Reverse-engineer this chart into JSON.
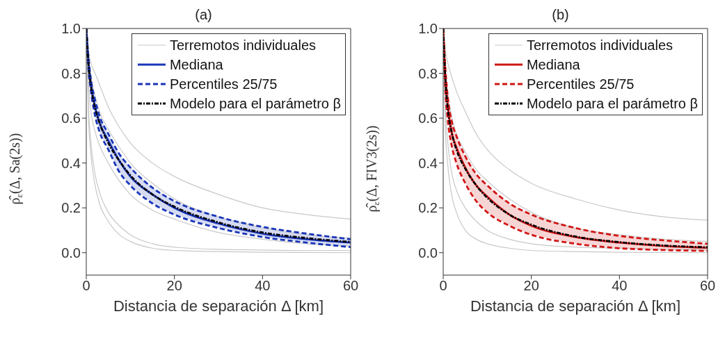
{
  "chart_data": [
    {
      "type": "line",
      "title": "(a)",
      "xlabel": "Distancia de separación Δ [km]",
      "ylabel": "ρ̂$_{ε}$(Δ, Sa(2s))",
      "x": [
        0,
        0.5,
        1,
        2,
        3,
        5,
        7.5,
        10,
        15,
        20,
        30,
        40,
        50,
        60
      ],
      "xlim": [
        0,
        60
      ],
      "xticks": [
        0,
        20,
        40,
        60
      ],
      "ylim": [
        -0.1,
        1.0
      ],
      "yticks": [
        {
          "value": 0,
          "label": "0.0"
        },
        {
          "value": 0.2,
          "label": "0.2"
        },
        {
          "value": 0.4,
          "label": "0.4"
        },
        {
          "value": 0.6,
          "label": "0.6"
        },
        {
          "value": 0.8,
          "label": "0.8"
        },
        {
          "value": 1,
          "label": "1.0"
        }
      ],
      "grid": false,
      "legend": "top right",
      "marker": "none",
      "series": [
        {
          "name": "Terremotos individuales",
          "color": "#c8c8c8",
          "line_style": "solid",
          "values": [
            1,
            0.9,
            0.85,
            0.8,
            0.75,
            0.65,
            0.56,
            0.49,
            0.4,
            0.34,
            0.26,
            0.2,
            0.17,
            0.15
          ]
        },
        {
          "color": "#c8c8c8",
          "line_style": "solid",
          "values": [
            1,
            0.6,
            0.45,
            0.3,
            0.22,
            0.14,
            0.08,
            0.05,
            0.02,
            0.01,
            0.005,
            0.002,
            0.001,
            0
          ]
        },
        {
          "color": "#c8c8c8",
          "line_style": "solid",
          "values": [
            1,
            0.65,
            0.5,
            0.35,
            0.27,
            0.18,
            0.12,
            0.08,
            0.04,
            0.025,
            0.015,
            0.012,
            0.01,
            0.01
          ]
        },
        {
          "color": "#c8c8c8",
          "line_style": "solid",
          "values": [
            1,
            0.75,
            0.64,
            0.54,
            0.48,
            0.4,
            0.32,
            0.26,
            0.19,
            0.15,
            0.09,
            0.06,
            0.04,
            0.03
          ]
        },
        {
          "color": "#c8c8c8",
          "line_style": "solid",
          "values": [
            1,
            0.86,
            0.79,
            0.7,
            0.63,
            0.55,
            0.47,
            0.4,
            0.31,
            0.24,
            0.16,
            0.11,
            0.08,
            0.065
          ]
        },
        {
          "name": "Mediana",
          "color": "#1a35b8",
          "line_style": "solid",
          "values": [
            1,
            0.85,
            0.76,
            0.65,
            0.58,
            0.5,
            0.41,
            0.34,
            0.26,
            0.2,
            0.13,
            0.085,
            0.06,
            0.045
          ],
          "lower": [
            1,
            0.82,
            0.73,
            0.61,
            0.54,
            0.46,
            0.36,
            0.3,
            0.22,
            0.17,
            0.11,
            0.07,
            0.045,
            0.025
          ],
          "upper": [
            1,
            0.87,
            0.78,
            0.68,
            0.61,
            0.53,
            0.44,
            0.38,
            0.29,
            0.23,
            0.16,
            0.115,
            0.085,
            0.06
          ]
        },
        {
          "name": "Percentiles 25/75",
          "color": "#1a35b8",
          "line_style": "dashed",
          "values": [
            1,
            0.87,
            0.78,
            0.68,
            0.61,
            0.53,
            0.44,
            0.38,
            0.29,
            0.23,
            0.16,
            0.115,
            0.085,
            0.06
          ]
        },
        {
          "color": "#1a35b8",
          "line_style": "dashed",
          "values": [
            1,
            0.82,
            0.73,
            0.61,
            0.54,
            0.46,
            0.36,
            0.3,
            0.22,
            0.17,
            0.11,
            0.07,
            0.045,
            0.025
          ]
        },
        {
          "name": "Modelo para el parámetro β",
          "color": "#000000",
          "line_style": "dashdot",
          "values": [
            1,
            0.84,
            0.75,
            0.645,
            0.58,
            0.49,
            0.41,
            0.345,
            0.26,
            0.205,
            0.135,
            0.09,
            0.065,
            0.048
          ]
        }
      ]
    },
    {
      "type": "line",
      "title": "(b)",
      "xlabel": "Distancia de separación Δ [km]",
      "ylabel": "ρ̂$_{ε}$(Δ, FIV3(2s))",
      "x": [
        0,
        0.5,
        1,
        2,
        3,
        5,
        7.5,
        10,
        15,
        20,
        30,
        40,
        50,
        60
      ],
      "xlim": [
        0,
        60
      ],
      "xticks": [
        0,
        20,
        40,
        60
      ],
      "ylim": [
        -0.1,
        1.0
      ],
      "yticks": [
        {
          "value": 0,
          "label": "0.0"
        },
        {
          "value": 0.2,
          "label": "0.2"
        },
        {
          "value": 0.4,
          "label": "0.4"
        },
        {
          "value": 0.6,
          "label": "0.6"
        },
        {
          "value": 0.8,
          "label": "0.8"
        },
        {
          "value": 1,
          "label": "1.0"
        }
      ],
      "grid": false,
      "legend": "top right",
      "marker": "none",
      "series": [
        {
          "name": "Terremotos individuales",
          "color": "#c8c8c8",
          "line_style": "solid",
          "values": [
            1,
            0.9,
            0.85,
            0.78,
            0.72,
            0.63,
            0.53,
            0.46,
            0.37,
            0.31,
            0.24,
            0.19,
            0.16,
            0.145
          ]
        },
        {
          "color": "#c8c8c8",
          "line_style": "solid",
          "values": [
            1,
            0.55,
            0.4,
            0.25,
            0.18,
            0.1,
            0.06,
            0.04,
            0.02,
            0.01,
            0.005,
            0.002,
            0.001,
            0
          ]
        },
        {
          "color": "#c8c8c8",
          "line_style": "solid",
          "values": [
            1,
            0.65,
            0.5,
            0.35,
            0.28,
            0.2,
            0.14,
            0.1,
            0.06,
            0.04,
            0.025,
            0.02,
            0.015,
            0.015
          ]
        },
        {
          "color": "#c8c8c8",
          "line_style": "solid",
          "values": [
            1,
            0.8,
            0.72,
            0.6,
            0.53,
            0.45,
            0.37,
            0.32,
            0.24,
            0.18,
            0.11,
            0.08,
            0.06,
            0.05
          ]
        },
        {
          "name": "Mediana",
          "color": "#d01515",
          "line_style": "solid",
          "values": [
            1,
            0.78,
            0.66,
            0.53,
            0.47,
            0.38,
            0.3,
            0.25,
            0.17,
            0.12,
            0.07,
            0.045,
            0.03,
            0.022
          ],
          "lower": [
            1,
            0.72,
            0.6,
            0.47,
            0.4,
            0.31,
            0.23,
            0.18,
            0.12,
            0.08,
            0.04,
            0.02,
            0.012,
            0.008
          ],
          "upper": [
            1,
            0.82,
            0.7,
            0.58,
            0.52,
            0.43,
            0.35,
            0.3,
            0.22,
            0.17,
            0.11,
            0.075,
            0.055,
            0.04
          ]
        },
        {
          "name": "Percentiles 25/75",
          "color": "#d01515",
          "line_style": "dashed",
          "values": [
            1,
            0.82,
            0.7,
            0.58,
            0.52,
            0.43,
            0.35,
            0.3,
            0.22,
            0.17,
            0.11,
            0.075,
            0.055,
            0.04
          ]
        },
        {
          "color": "#d01515",
          "line_style": "dashed",
          "values": [
            1,
            0.72,
            0.6,
            0.47,
            0.4,
            0.31,
            0.23,
            0.18,
            0.12,
            0.08,
            0.04,
            0.02,
            0.012,
            0.008
          ]
        },
        {
          "name": "Modelo para el parámetro β",
          "color": "#000000",
          "line_style": "dashdot",
          "values": [
            1,
            0.77,
            0.65,
            0.53,
            0.46,
            0.375,
            0.3,
            0.245,
            0.17,
            0.125,
            0.072,
            0.047,
            0.032,
            0.024
          ]
        }
      ]
    }
  ]
}
